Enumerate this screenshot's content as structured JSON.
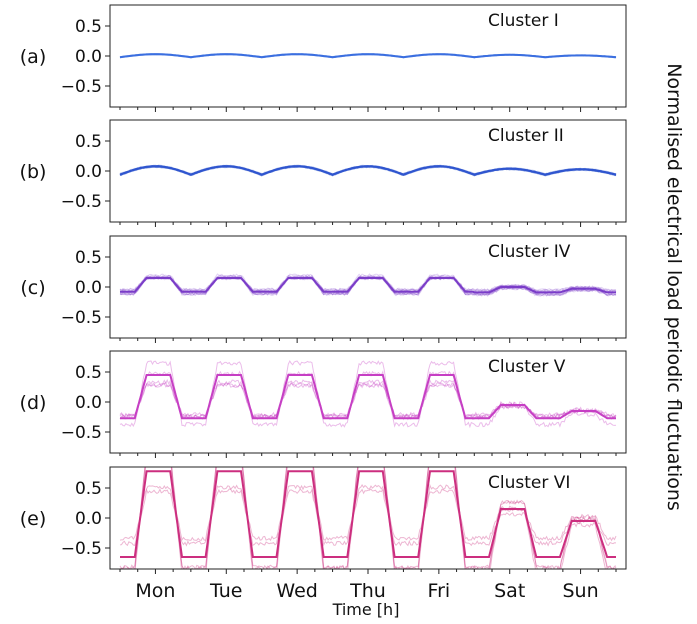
{
  "chart_data": {
    "type": "line",
    "xlabel": "Time [h]",
    "ylabel": "Normalised electrical load periodic fluctuations",
    "x_tick_labels": [
      "Mon",
      "Tue",
      "Wed",
      "Thu",
      "Fri",
      "Sat",
      "Sun"
    ],
    "y_tick_labels": [
      "0.5",
      "0.0",
      "−0.5"
    ],
    "y_ticks": [
      0.5,
      0.0,
      -0.5
    ],
    "ylim": [
      -0.85,
      0.85
    ],
    "xlim": [
      0,
      168
    ],
    "panels": [
      {
        "label": "(a)",
        "title": "Cluster I",
        "color": "#3b6fe0",
        "profile": {
          "weekday_day": 0.03,
          "weekday_night": -0.02,
          "sat_day": 0.02,
          "sun_day": 0.01,
          "night": -0.02,
          "shape": "sine"
        },
        "spread": 0.015,
        "n_lines": 25
      },
      {
        "label": "(b)",
        "title": "Cluster II",
        "color": "#2f55cf",
        "profile": {
          "weekday_day": 0.08,
          "weekday_night": -0.06,
          "sat_day": 0.04,
          "sun_day": 0.03,
          "night": -0.06,
          "shape": "sine"
        },
        "spread": 0.03,
        "n_lines": 25
      },
      {
        "label": "(c)",
        "title": "Cluster IV",
        "color": "#7a3cc8",
        "profile": {
          "weekday_day": 0.15,
          "weekday_night": -0.08,
          "sat_day": 0.0,
          "sun_day": -0.03,
          "night": -0.09,
          "shape": "plateau"
        },
        "spread": 0.06,
        "n_lines": 12
      },
      {
        "label": "(d)",
        "title": "Cluster V",
        "color": "#c63fc4",
        "profile": {
          "weekday_day": 0.45,
          "weekday_night": -0.27,
          "sat_day": -0.05,
          "sun_day": -0.15,
          "night": -0.27,
          "shape": "plateau"
        },
        "spread": 0.12,
        "n_lines": 5
      },
      {
        "label": "(e)",
        "title": "Cluster VI",
        "color": "#cc2e7f",
        "profile": {
          "weekday_day": 0.78,
          "weekday_night": -0.65,
          "sat_day": 0.15,
          "sun_day": -0.05,
          "night": -0.65,
          "shape": "plateau"
        },
        "spread": 0.12,
        "n_lines": 5
      }
    ]
  }
}
